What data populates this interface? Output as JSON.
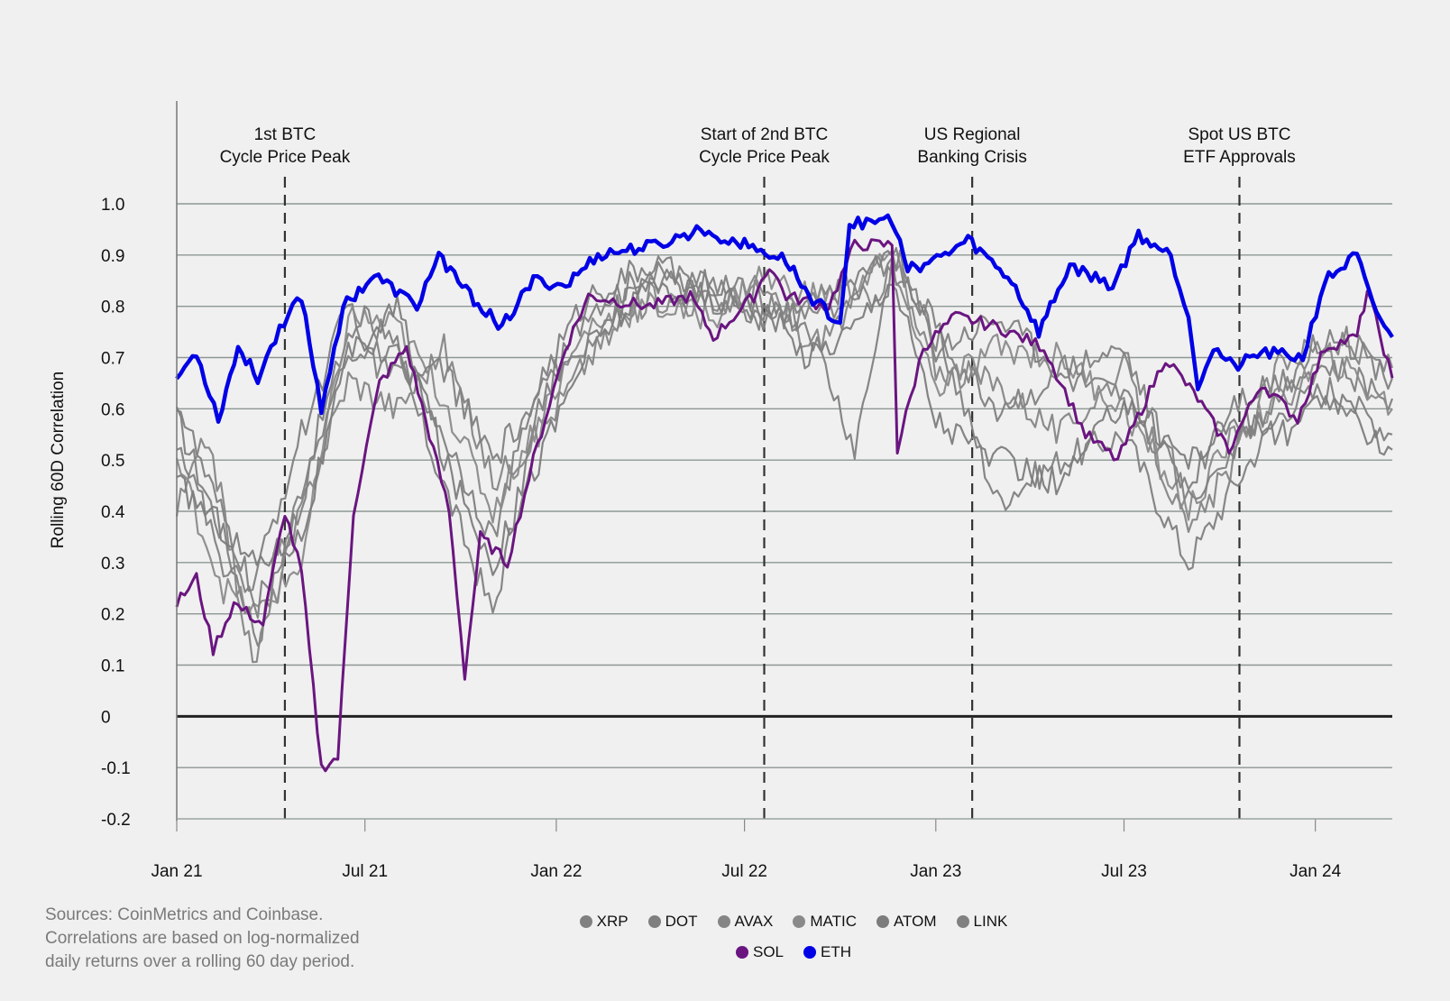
{
  "chart_data": {
    "type": "line",
    "title": "",
    "ylabel": "Rolling 60D Correlation",
    "xlabel": "",
    "ylim": [
      -0.2,
      1.0
    ],
    "yticks": [
      "1.0",
      "0.9",
      "0.8",
      "0.7",
      "0.6",
      "0.5",
      "0.4",
      "0.3",
      "0.2",
      "0.1",
      "0",
      "-0.1",
      "-0.2"
    ],
    "xticks": [
      "Jan 21",
      "Jul 21",
      "Jan 22",
      "Jul 22",
      "Jan 23",
      "Jul 23",
      "Jan 24"
    ],
    "x_range": [
      "2021-01-01",
      "2024-03-15"
    ],
    "grid": true,
    "events": [
      {
        "date": "2021-04-15",
        "line1": "1st BTC",
        "line2": "Cycle Price Peak"
      },
      {
        "date": "2022-07-20",
        "line1": "Start of 2nd BTC",
        "line2": "Cycle Price Peak"
      },
      {
        "date": "2023-02-05",
        "line1": "US Regional",
        "line2": "Banking Crisis"
      },
      {
        "date": "2023-10-20",
        "line1": "Spot US BTC",
        "line2": "ETF Approvals"
      }
    ],
    "series": [
      {
        "name": "XRP",
        "color": "#808080",
        "points": [
          [
            "2021-01-01",
            0.58
          ],
          [
            "2021-02-15",
            0.35
          ],
          [
            "2021-03-20",
            0.15
          ],
          [
            "2021-05-01",
            0.45
          ],
          [
            "2021-06-15",
            0.75
          ],
          [
            "2021-08-01",
            0.7
          ],
          [
            "2021-09-15",
            0.45
          ],
          [
            "2021-11-01",
            0.2
          ],
          [
            "2021-12-15",
            0.6
          ],
          [
            "2022-02-01",
            0.8
          ],
          [
            "2022-04-01",
            0.86
          ],
          [
            "2022-06-01",
            0.85
          ],
          [
            "2022-07-15",
            0.78
          ],
          [
            "2022-09-01",
            0.8
          ],
          [
            "2022-10-15",
            0.85
          ],
          [
            "2022-11-20",
            0.9
          ],
          [
            "2023-01-01",
            0.76
          ],
          [
            "2023-03-01",
            0.42
          ],
          [
            "2023-05-01",
            0.5
          ],
          [
            "2023-07-01",
            0.55
          ],
          [
            "2023-09-01",
            0.3
          ],
          [
            "2023-10-15",
            0.45
          ],
          [
            "2023-12-01",
            0.6
          ],
          [
            "2024-01-15",
            0.64
          ],
          [
            "2024-03-15",
            0.55
          ]
        ]
      },
      {
        "name": "DOT",
        "color": "#7f7f7f",
        "points": [
          [
            "2021-01-01",
            0.62
          ],
          [
            "2021-02-01",
            0.45
          ],
          [
            "2021-03-15",
            0.25
          ],
          [
            "2021-05-01",
            0.55
          ],
          [
            "2021-06-15",
            0.8
          ],
          [
            "2021-08-01",
            0.72
          ],
          [
            "2021-09-15",
            0.55
          ],
          [
            "2021-11-01",
            0.35
          ],
          [
            "2021-12-15",
            0.65
          ],
          [
            "2022-02-01",
            0.82
          ],
          [
            "2022-04-01",
            0.88
          ],
          [
            "2022-06-01",
            0.84
          ],
          [
            "2022-07-15",
            0.82
          ],
          [
            "2022-09-01",
            0.76
          ],
          [
            "2022-10-15",
            0.52
          ],
          [
            "2022-11-20",
            0.88
          ],
          [
            "2023-01-01",
            0.74
          ],
          [
            "2023-03-01",
            0.6
          ],
          [
            "2023-05-01",
            0.66
          ],
          [
            "2023-07-01",
            0.62
          ],
          [
            "2023-09-01",
            0.45
          ],
          [
            "2023-10-15",
            0.62
          ],
          [
            "2023-12-01",
            0.66
          ],
          [
            "2024-01-15",
            0.68
          ],
          [
            "2024-03-15",
            0.62
          ]
        ]
      },
      {
        "name": "AVAX",
        "color": "#858585",
        "points": [
          [
            "2021-01-01",
            0.4
          ],
          [
            "2021-02-01",
            0.55
          ],
          [
            "2021-03-15",
            0.1
          ],
          [
            "2021-05-01",
            0.4
          ],
          [
            "2021-06-15",
            0.66
          ],
          [
            "2021-08-01",
            0.6
          ],
          [
            "2021-09-15",
            0.72
          ],
          [
            "2021-11-01",
            0.46
          ],
          [
            "2021-12-15",
            0.55
          ],
          [
            "2022-02-01",
            0.7
          ],
          [
            "2022-04-01",
            0.82
          ],
          [
            "2022-06-01",
            0.8
          ],
          [
            "2022-07-15",
            0.84
          ],
          [
            "2022-09-01",
            0.72
          ],
          [
            "2022-10-15",
            0.8
          ],
          [
            "2022-11-20",
            0.86
          ],
          [
            "2023-01-01",
            0.68
          ],
          [
            "2023-03-01",
            0.65
          ],
          [
            "2023-05-01",
            0.55
          ],
          [
            "2023-07-01",
            0.68
          ],
          [
            "2023-09-01",
            0.35
          ],
          [
            "2023-10-15",
            0.5
          ],
          [
            "2023-12-01",
            0.7
          ],
          [
            "2024-01-15",
            0.73
          ],
          [
            "2024-03-15",
            0.68
          ]
        ]
      },
      {
        "name": "MATIC",
        "color": "#8a8a8a",
        "points": [
          [
            "2021-01-01",
            0.5
          ],
          [
            "2021-02-15",
            0.25
          ],
          [
            "2021-03-20",
            0.2
          ],
          [
            "2021-05-01",
            0.3
          ],
          [
            "2021-06-15",
            0.78
          ],
          [
            "2021-08-01",
            0.76
          ],
          [
            "2021-09-15",
            0.62
          ],
          [
            "2021-11-01",
            0.4
          ],
          [
            "2021-12-15",
            0.58
          ],
          [
            "2022-02-01",
            0.76
          ],
          [
            "2022-04-01",
            0.8
          ],
          [
            "2022-06-01",
            0.78
          ],
          [
            "2022-07-15",
            0.86
          ],
          [
            "2022-09-01",
            0.82
          ],
          [
            "2022-10-15",
            0.84
          ],
          [
            "2022-11-20",
            0.9
          ],
          [
            "2023-01-01",
            0.64
          ],
          [
            "2023-03-01",
            0.72
          ],
          [
            "2023-05-01",
            0.7
          ],
          [
            "2023-07-01",
            0.6
          ],
          [
            "2023-09-01",
            0.4
          ],
          [
            "2023-10-15",
            0.55
          ],
          [
            "2023-12-01",
            0.62
          ],
          [
            "2024-01-15",
            0.7
          ],
          [
            "2024-03-15",
            0.6
          ]
        ]
      },
      {
        "name": "ATOM",
        "color": "#7c7c7c",
        "points": [
          [
            "2021-01-01",
            0.45
          ],
          [
            "2021-02-01",
            0.4
          ],
          [
            "2021-03-15",
            0.3
          ],
          [
            "2021-05-01",
            0.35
          ],
          [
            "2021-06-15",
            0.7
          ],
          [
            "2021-08-01",
            0.8
          ],
          [
            "2021-09-15",
            0.5
          ],
          [
            "2021-11-01",
            0.3
          ],
          [
            "2021-12-15",
            0.5
          ],
          [
            "2022-02-01",
            0.72
          ],
          [
            "2022-04-01",
            0.84
          ],
          [
            "2022-06-01",
            0.82
          ],
          [
            "2022-07-15",
            0.8
          ],
          [
            "2022-09-01",
            0.7
          ],
          [
            "2022-10-15",
            0.76
          ],
          [
            "2022-11-20",
            0.86
          ],
          [
            "2023-01-01",
            0.58
          ],
          [
            "2023-03-01",
            0.5
          ],
          [
            "2023-05-01",
            0.45
          ],
          [
            "2023-07-01",
            0.62
          ],
          [
            "2023-09-01",
            0.5
          ],
          [
            "2023-10-15",
            0.58
          ],
          [
            "2023-12-01",
            0.55
          ],
          [
            "2024-01-15",
            0.62
          ],
          [
            "2024-03-15",
            0.52
          ]
        ]
      },
      {
        "name": "LINK",
        "color": "#818181",
        "points": [
          [
            "2021-01-01",
            0.55
          ],
          [
            "2021-02-15",
            0.3
          ],
          [
            "2021-03-20",
            0.22
          ],
          [
            "2021-05-01",
            0.42
          ],
          [
            "2021-06-15",
            0.72
          ],
          [
            "2021-08-01",
            0.66
          ],
          [
            "2021-09-15",
            0.68
          ],
          [
            "2021-11-01",
            0.5
          ],
          [
            "2021-12-15",
            0.62
          ],
          [
            "2022-02-01",
            0.74
          ],
          [
            "2022-04-01",
            0.86
          ],
          [
            "2022-06-01",
            0.8
          ],
          [
            "2022-07-15",
            0.78
          ],
          [
            "2022-09-01",
            0.78
          ],
          [
            "2022-10-15",
            0.82
          ],
          [
            "2022-11-20",
            0.92
          ],
          [
            "2023-01-01",
            0.72
          ],
          [
            "2023-03-01",
            0.78
          ],
          [
            "2023-05-01",
            0.68
          ],
          [
            "2023-07-01",
            0.72
          ],
          [
            "2023-09-01",
            0.42
          ],
          [
            "2023-10-15",
            0.52
          ],
          [
            "2023-12-01",
            0.64
          ],
          [
            "2024-01-15",
            0.76
          ],
          [
            "2024-03-15",
            0.66
          ]
        ]
      },
      {
        "name": "SOL",
        "color": "#6a1580",
        "points": [
          [
            "2021-01-01",
            0.22
          ],
          [
            "2021-01-20",
            0.27
          ],
          [
            "2021-02-05",
            0.13
          ],
          [
            "2021-02-25",
            0.22
          ],
          [
            "2021-03-25",
            0.18
          ],
          [
            "2021-04-15",
            0.4
          ],
          [
            "2021-05-01",
            0.28
          ],
          [
            "2021-05-20",
            -0.1
          ],
          [
            "2021-06-05",
            -0.08
          ],
          [
            "2021-06-20",
            0.4
          ],
          [
            "2021-07-15",
            0.65
          ],
          [
            "2021-08-10",
            0.72
          ],
          [
            "2021-09-01",
            0.55
          ],
          [
            "2021-09-20",
            0.4
          ],
          [
            "2021-10-05",
            0.08
          ],
          [
            "2021-10-20",
            0.35
          ],
          [
            "2021-11-15",
            0.3
          ],
          [
            "2021-12-10",
            0.5
          ],
          [
            "2022-01-10",
            0.72
          ],
          [
            "2022-02-01",
            0.82
          ],
          [
            "2022-04-01",
            0.8
          ],
          [
            "2022-05-10",
            0.82
          ],
          [
            "2022-06-01",
            0.74
          ],
          [
            "2022-07-10",
            0.82
          ],
          [
            "2022-07-25",
            0.88
          ],
          [
            "2022-08-10",
            0.82
          ],
          [
            "2022-09-20",
            0.8
          ],
          [
            "2022-10-15",
            0.92
          ],
          [
            "2022-11-20",
            0.92
          ],
          [
            "2022-11-25",
            0.52
          ],
          [
            "2022-12-20",
            0.72
          ],
          [
            "2023-01-20",
            0.78
          ],
          [
            "2023-03-01",
            0.76
          ],
          [
            "2023-04-15",
            0.72
          ],
          [
            "2023-05-25",
            0.55
          ],
          [
            "2023-06-25",
            0.5
          ],
          [
            "2023-08-10",
            0.7
          ],
          [
            "2023-09-10",
            0.62
          ],
          [
            "2023-10-10",
            0.52
          ],
          [
            "2023-11-10",
            0.65
          ],
          [
            "2023-12-15",
            0.58
          ],
          [
            "2024-01-10",
            0.72
          ],
          [
            "2024-02-10",
            0.74
          ],
          [
            "2024-02-20",
            0.83
          ],
          [
            "2024-03-15",
            0.66
          ]
        ]
      },
      {
        "name": "ETH",
        "color": "#0000e6",
        "points": [
          [
            "2021-01-01",
            0.66
          ],
          [
            "2021-01-20",
            0.71
          ],
          [
            "2021-02-10",
            0.58
          ],
          [
            "2021-03-01",
            0.72
          ],
          [
            "2021-03-20",
            0.66
          ],
          [
            "2021-04-10",
            0.76
          ],
          [
            "2021-05-01",
            0.82
          ],
          [
            "2021-05-20",
            0.6
          ],
          [
            "2021-06-10",
            0.8
          ],
          [
            "2021-07-10",
            0.86
          ],
          [
            "2021-08-20",
            0.8
          ],
          [
            "2021-09-10",
            0.9
          ],
          [
            "2021-10-10",
            0.82
          ],
          [
            "2021-11-10",
            0.76
          ],
          [
            "2021-12-10",
            0.85
          ],
          [
            "2022-01-10",
            0.84
          ],
          [
            "2022-02-10",
            0.9
          ],
          [
            "2022-04-10",
            0.92
          ],
          [
            "2022-05-20",
            0.95
          ],
          [
            "2022-07-01",
            0.92
          ],
          [
            "2022-08-10",
            0.89
          ],
          [
            "2022-09-01",
            0.82
          ],
          [
            "2022-10-01",
            0.77
          ],
          [
            "2022-10-10",
            0.96
          ],
          [
            "2022-11-20",
            0.97
          ],
          [
            "2022-12-05",
            0.87
          ],
          [
            "2023-01-10",
            0.9
          ],
          [
            "2023-02-01",
            0.93
          ],
          [
            "2023-03-15",
            0.85
          ],
          [
            "2023-04-10",
            0.75
          ],
          [
            "2023-05-10",
            0.88
          ],
          [
            "2023-06-20",
            0.84
          ],
          [
            "2023-07-15",
            0.94
          ],
          [
            "2023-08-15",
            0.9
          ],
          [
            "2023-09-01",
            0.78
          ],
          [
            "2023-09-10",
            0.65
          ],
          [
            "2023-09-25",
            0.72
          ],
          [
            "2023-10-15",
            0.68
          ],
          [
            "2023-11-10",
            0.71
          ],
          [
            "2023-12-20",
            0.7
          ],
          [
            "2024-01-10",
            0.85
          ],
          [
            "2024-02-10",
            0.9
          ],
          [
            "2024-02-25",
            0.8
          ],
          [
            "2024-03-15",
            0.74
          ]
        ]
      }
    ]
  },
  "source_note": {
    "line1": "Sources: CoinMetrics and Coinbase.",
    "line2": "Correlations are based on log-normalized",
    "line3": "daily returns over a rolling 60 day period."
  }
}
